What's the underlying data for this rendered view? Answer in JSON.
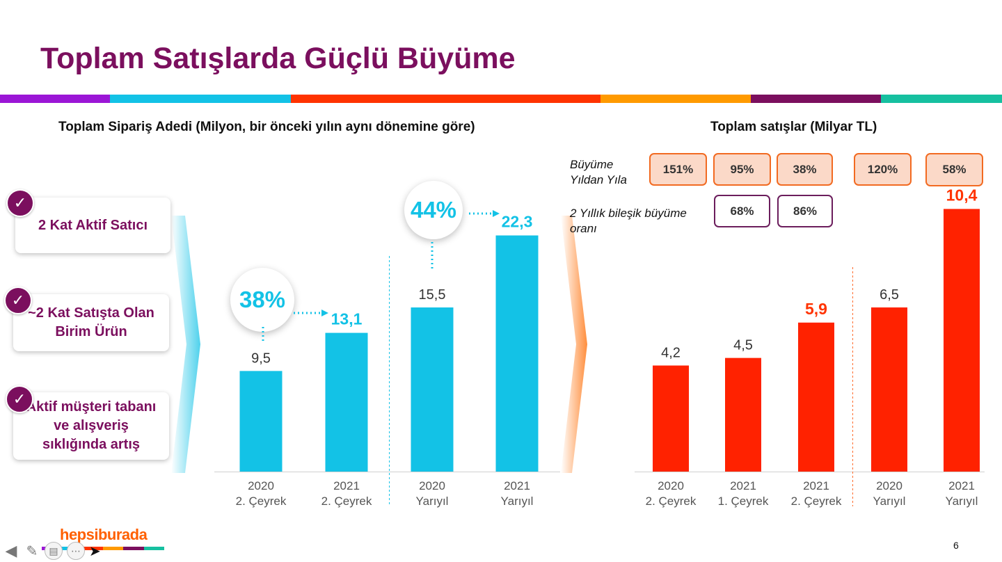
{
  "slide": {
    "title": "Toplam Satışlarda Güçlü Büyüme",
    "page_number": "6",
    "logo_text": "hepsiburada",
    "strip_colors": [
      "#9b16d6",
      "#13c2e6",
      "#ff3300",
      "#ff9a00",
      "#7b0f5e",
      "#16c0a0"
    ]
  },
  "highlights": [
    {
      "label": "2 Kat Aktif Satıcı"
    },
    {
      "label": "~2 Kat Satışta Olan Birim Ürün"
    },
    {
      "label": "Aktif müşteri tabanı ve alışveriş sıklığında artış"
    }
  ],
  "orders": {
    "growth_bubbles": [
      {
        "label": "38%",
        "from_index": 0,
        "to_index": 1
      },
      {
        "label": "44%",
        "from_index": 2,
        "to_index": 3
      }
    ]
  },
  "sales": {
    "yoy_label": "Büyüme Yıldan Yıla",
    "cagr_label": "2 Yıllık bileşik büyüme oranı",
    "yoy": [
      "151%",
      "95%",
      "38%",
      "120%",
      "58%"
    ],
    "cagr": [
      "68%",
      "86%"
    ]
  },
  "toolbar": {
    "back_icon": "arrow-left-icon",
    "pen_icon": "pen-icon",
    "slides_icon": "slides-icon",
    "more_icon": "more-icon",
    "pointer_icon": "mouse-pointer-icon"
  },
  "chart_data": [
    {
      "type": "bar",
      "title": "Toplam Sipariş Adedi (Milyon, bir önceki yılın aynı dönemine göre)",
      "categories": [
        "2020\n2. Çeyrek",
        "2021\n2. Çeyrek",
        "2020\nYarıyıl",
        "2021\nYarıyıl"
      ],
      "values": [
        9.5,
        13.1,
        15.5,
        22.3
      ],
      "value_labels": [
        "9,5",
        "13,1",
        "15,5",
        "22,3"
      ],
      "highlight": [
        false,
        true,
        false,
        true
      ],
      "color": "#13c2e6",
      "highlight_label_color": "#13c2e6",
      "ylim": [
        0,
        24.5
      ],
      "grid": false,
      "divider_after_index": 1
    },
    {
      "type": "bar",
      "title": "Toplam satışlar (Milyar TL)",
      "categories": [
        "2020\n2. Çeyrek",
        "2021\n1. Çeyrek",
        "2021\n2. Çeyrek",
        "2020\nYarıyıl",
        "2021\nYarıyıl"
      ],
      "values": [
        4.2,
        4.5,
        5.9,
        6.5,
        10.4
      ],
      "value_labels": [
        "4,2",
        "4,5",
        "5,9",
        "6,5",
        "10,4"
      ],
      "highlight": [
        false,
        false,
        true,
        false,
        true
      ],
      "color": "#ff2200",
      "highlight_label_color": "#ff3300",
      "ylim": [
        0,
        11.1
      ],
      "grid": false,
      "divider_after_index": 2
    }
  ]
}
